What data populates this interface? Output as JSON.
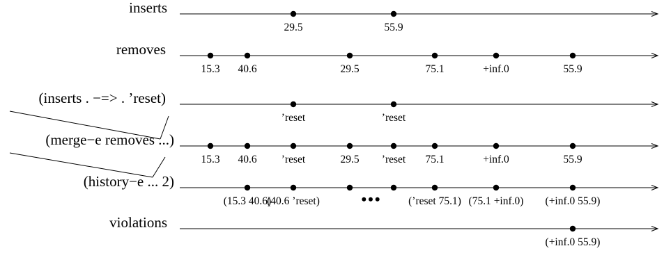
{
  "rows": [
    {
      "id": "inserts",
      "label": "inserts",
      "events": [
        {
          "slot": 4,
          "label": "29.5"
        },
        {
          "slot": 6,
          "label": "55.9"
        }
      ]
    },
    {
      "id": "removes",
      "label": "removes",
      "events": [
        {
          "slot": 1,
          "label": "15.3"
        },
        {
          "slot": 2,
          "label": "40.6"
        },
        {
          "slot": 5,
          "label": "29.5"
        },
        {
          "slot": 7,
          "label": "75.1"
        },
        {
          "slot": 8,
          "label": "+inf.0"
        },
        {
          "slot": 9,
          "label": "55.9"
        }
      ]
    },
    {
      "id": "inserts-reset",
      "label": "(inserts . −=> . ’reset)",
      "events": [
        {
          "slot": 4,
          "label": "’reset"
        },
        {
          "slot": 6,
          "label": "’reset"
        }
      ]
    },
    {
      "id": "merge-e",
      "label": "(merge−e removes ...)",
      "events": [
        {
          "slot": 1,
          "label": "15.3"
        },
        {
          "slot": 2,
          "label": "40.6"
        },
        {
          "slot": 4,
          "label": "’reset"
        },
        {
          "slot": 5,
          "label": "29.5"
        },
        {
          "slot": 6,
          "label": "’reset"
        },
        {
          "slot": 7,
          "label": "75.1"
        },
        {
          "slot": 8,
          "label": "+inf.0"
        },
        {
          "slot": 9,
          "label": "55.9"
        }
      ]
    },
    {
      "id": "history-e",
      "label": "(history−e ... 2)",
      "events": [
        {
          "slot": 2,
          "label": "(15.3 40.6)"
        },
        {
          "slot": 4,
          "label": "(40.6 ’reset)"
        },
        {
          "slot": 5,
          "label": ""
        },
        {
          "slot": 6,
          "label": ""
        },
        {
          "slot": 7,
          "label": "(’reset 75.1)"
        },
        {
          "slot": 8,
          "label": "(75.1 +inf.0)"
        },
        {
          "slot": 9,
          "label": "(+inf.0 55.9)"
        }
      ],
      "ellipsis": "•••"
    },
    {
      "id": "violations",
      "label": "violations",
      "events": [
        {
          "slot": 9,
          "label": "(+inf.0 55.9)"
        }
      ]
    }
  ]
}
